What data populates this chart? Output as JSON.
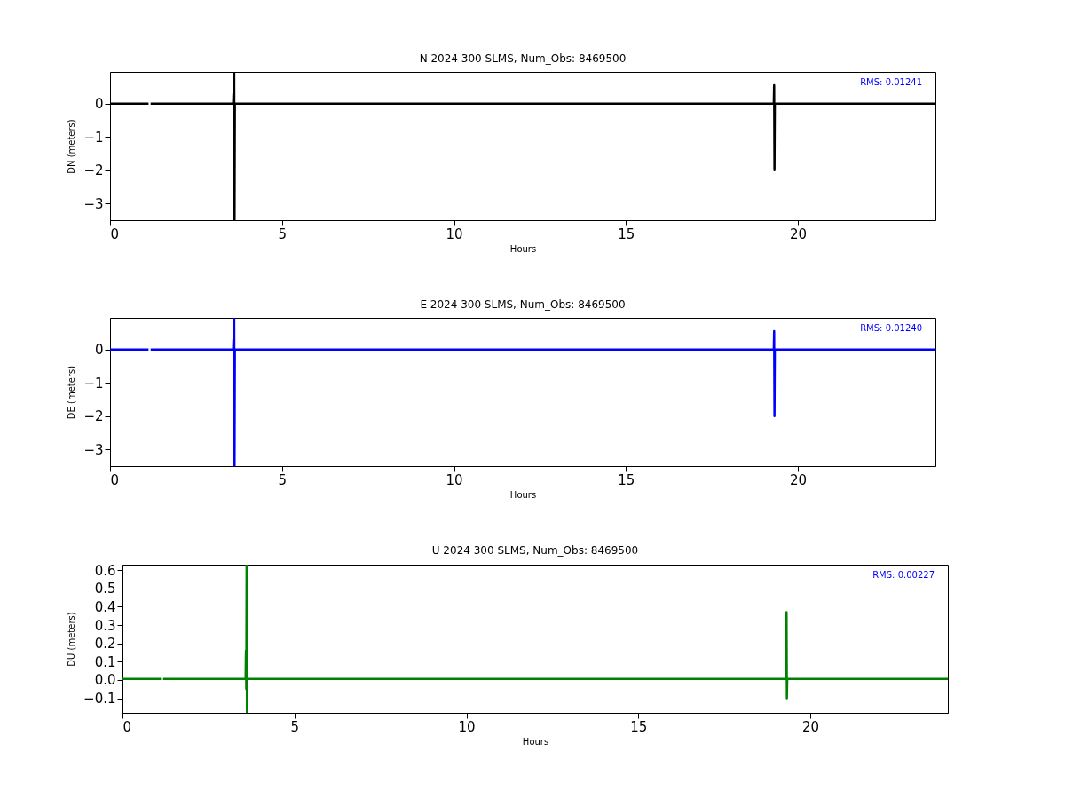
{
  "chart_data": [
    {
      "type": "line",
      "title": "N 2024 300 SLMS, Num_Obs: 8469500",
      "xlabel": "Hours",
      "ylabel": "DN (meters)",
      "xlim": [
        0,
        24
      ],
      "ylim": [
        -3.5,
        0.95
      ],
      "xticks": [
        0,
        5,
        10,
        15,
        20
      ],
      "yticks": [
        -3,
        -2,
        -1,
        0
      ],
      "grid": false,
      "annotations": [
        "RMS:  0.01241"
      ],
      "x": [
        0,
        1.12,
        1.15,
        1.18,
        3.58,
        3.59,
        3.6,
        3.61,
        3.62,
        3.63,
        19.3,
        19.31,
        19.32,
        19.33,
        24
      ],
      "series": [
        {
          "color": "#000000",
          "values": [
            0,
            0,
            null,
            0,
            0,
            0.3,
            -0.9,
            0.95,
            -3.5,
            0,
            0,
            0.55,
            -2.0,
            0,
            0
          ]
        }
      ]
    },
    {
      "type": "line",
      "title": "E 2024 300 SLMS, Num_Obs: 8469500",
      "xlabel": "Hours",
      "ylabel": "DE (meters)",
      "xlim": [
        0,
        24
      ],
      "ylim": [
        -3.5,
        0.95
      ],
      "xticks": [
        0,
        5,
        10,
        15,
        20
      ],
      "yticks": [
        -3,
        -2,
        -1,
        0
      ],
      "grid": false,
      "annotations": [
        "RMS:  0.01240"
      ],
      "x": [
        0,
        1.12,
        1.15,
        1.18,
        3.58,
        3.59,
        3.6,
        3.61,
        3.62,
        3.63,
        19.3,
        19.31,
        19.32,
        19.33,
        24
      ],
      "series": [
        {
          "color": "#0000ff",
          "values": [
            0,
            0,
            null,
            0,
            0,
            0.3,
            -0.85,
            0.95,
            -3.5,
            0,
            0,
            0.55,
            -2.0,
            0,
            0
          ]
        }
      ]
    },
    {
      "type": "line",
      "title": "U 2024 300 SLMS, Num_Obs: 8469500",
      "xlabel": "Hours",
      "ylabel": "DU (meters)",
      "xlim": [
        0,
        24
      ],
      "ylim": [
        -0.18,
        0.63
      ],
      "xticks": [
        0,
        5,
        10,
        15,
        20
      ],
      "yticks": [
        {
          "value": -0.1,
          "label": "−0.1"
        },
        {
          "value": 0,
          "label": "0.0"
        },
        {
          "value": 0.1,
          "label": "0.1"
        },
        {
          "value": 0.2,
          "label": "0.2"
        },
        {
          "value": 0.3,
          "label": "0.3"
        },
        {
          "value": 0.4,
          "label": "0.4"
        },
        {
          "value": 0.5,
          "label": "0.5"
        },
        {
          "value": 0.6,
          "label": "0.6"
        }
      ],
      "grid": false,
      "annotations": [
        "RMS:  0.00227"
      ],
      "x": [
        0,
        1.12,
        1.15,
        1.18,
        3.58,
        3.59,
        3.6,
        3.61,
        3.62,
        3.63,
        19.3,
        19.31,
        19.32,
        19.33,
        24
      ],
      "series": [
        {
          "color": "#008000",
          "values": [
            0.005,
            0.005,
            null,
            0.005,
            0.005,
            0.16,
            -0.05,
            0.63,
            -0.18,
            0.005,
            0.005,
            0.37,
            -0.1,
            0.005,
            0.005
          ]
        }
      ]
    }
  ]
}
